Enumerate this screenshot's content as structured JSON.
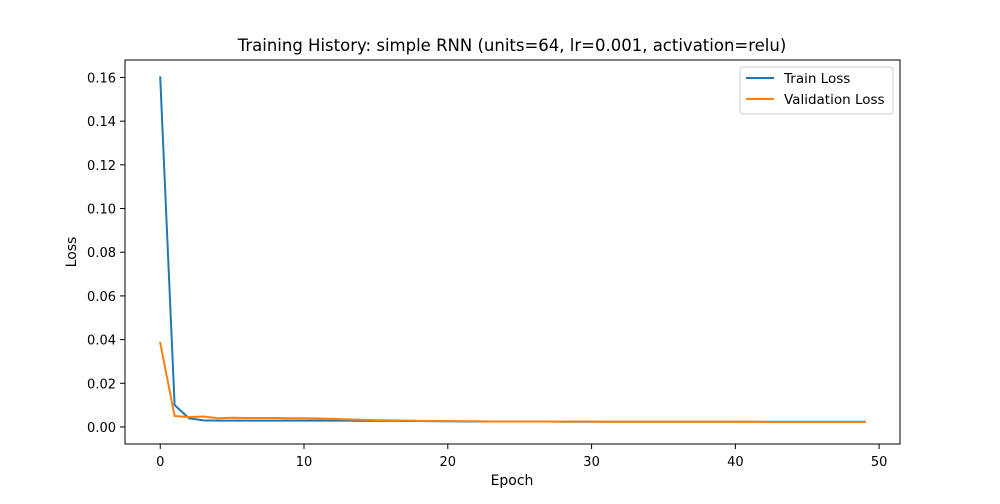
{
  "chart_data": {
    "type": "line",
    "title": "Training History: simple RNN (units=64, lr=0.001, activation=relu)",
    "xlabel": "Epoch",
    "ylabel": "Loss",
    "xlim": [
      -2.45,
      51.45
    ],
    "ylim": [
      -0.0078,
      0.168
    ],
    "xticks": [
      0,
      10,
      20,
      30,
      40,
      50
    ],
    "yticks": [
      0.0,
      0.02,
      0.04,
      0.06,
      0.08,
      0.1,
      0.12,
      0.14,
      0.16
    ],
    "xtick_labels": [
      "0",
      "10",
      "20",
      "30",
      "40",
      "50"
    ],
    "ytick_labels": [
      "0.00",
      "0.02",
      "0.04",
      "0.06",
      "0.08",
      "0.10",
      "0.12",
      "0.14",
      "0.16"
    ],
    "grid": false,
    "legend_position": "top-right",
    "x": [
      0,
      1,
      2,
      3,
      4,
      5,
      6,
      7,
      8,
      9,
      10,
      11,
      12,
      13,
      14,
      15,
      16,
      17,
      18,
      19,
      20,
      21,
      22,
      23,
      24,
      25,
      26,
      27,
      28,
      29,
      30,
      31,
      32,
      33,
      34,
      35,
      36,
      37,
      38,
      39,
      40,
      41,
      42,
      43,
      44,
      45,
      46,
      47,
      48,
      49
    ],
    "series": [
      {
        "name": "Train Loss",
        "color": "#1f77b4",
        "values": [
          0.16,
          0.01,
          0.004,
          0.003,
          0.0029,
          0.0029,
          0.0029,
          0.0029,
          0.0029,
          0.0029,
          0.0029,
          0.0029,
          0.0029,
          0.0029,
          0.0028,
          0.0028,
          0.0028,
          0.0027,
          0.0027,
          0.0026,
          0.0026,
          0.0025,
          0.0025,
          0.0025,
          0.0025,
          0.0025,
          0.0025,
          0.0025,
          0.0024,
          0.0024,
          0.0024,
          0.0024,
          0.0024,
          0.0024,
          0.0024,
          0.0024,
          0.0024,
          0.0024,
          0.0024,
          0.0024,
          0.0024,
          0.0024,
          0.0024,
          0.0024,
          0.0024,
          0.0024,
          0.0024,
          0.0024,
          0.0024,
          0.0024
        ]
      },
      {
        "name": "Validation Loss",
        "color": "#ff7f0e",
        "values": [
          0.0385,
          0.005,
          0.0045,
          0.0048,
          0.004,
          0.0042,
          0.0041,
          0.0041,
          0.0041,
          0.004,
          0.004,
          0.0039,
          0.0037,
          0.0035,
          0.0033,
          0.0031,
          0.003,
          0.0029,
          0.0028,
          0.0027,
          0.0026,
          0.0026,
          0.0026,
          0.0025,
          0.0025,
          0.0025,
          0.0025,
          0.0025,
          0.0025,
          0.0025,
          0.0025,
          0.0024,
          0.0024,
          0.0024,
          0.0024,
          0.0024,
          0.0024,
          0.0024,
          0.0024,
          0.0024,
          0.0024,
          0.0024,
          0.0023,
          0.0023,
          0.0023,
          0.0023,
          0.0023,
          0.0023,
          0.0023,
          0.0023
        ]
      }
    ]
  }
}
